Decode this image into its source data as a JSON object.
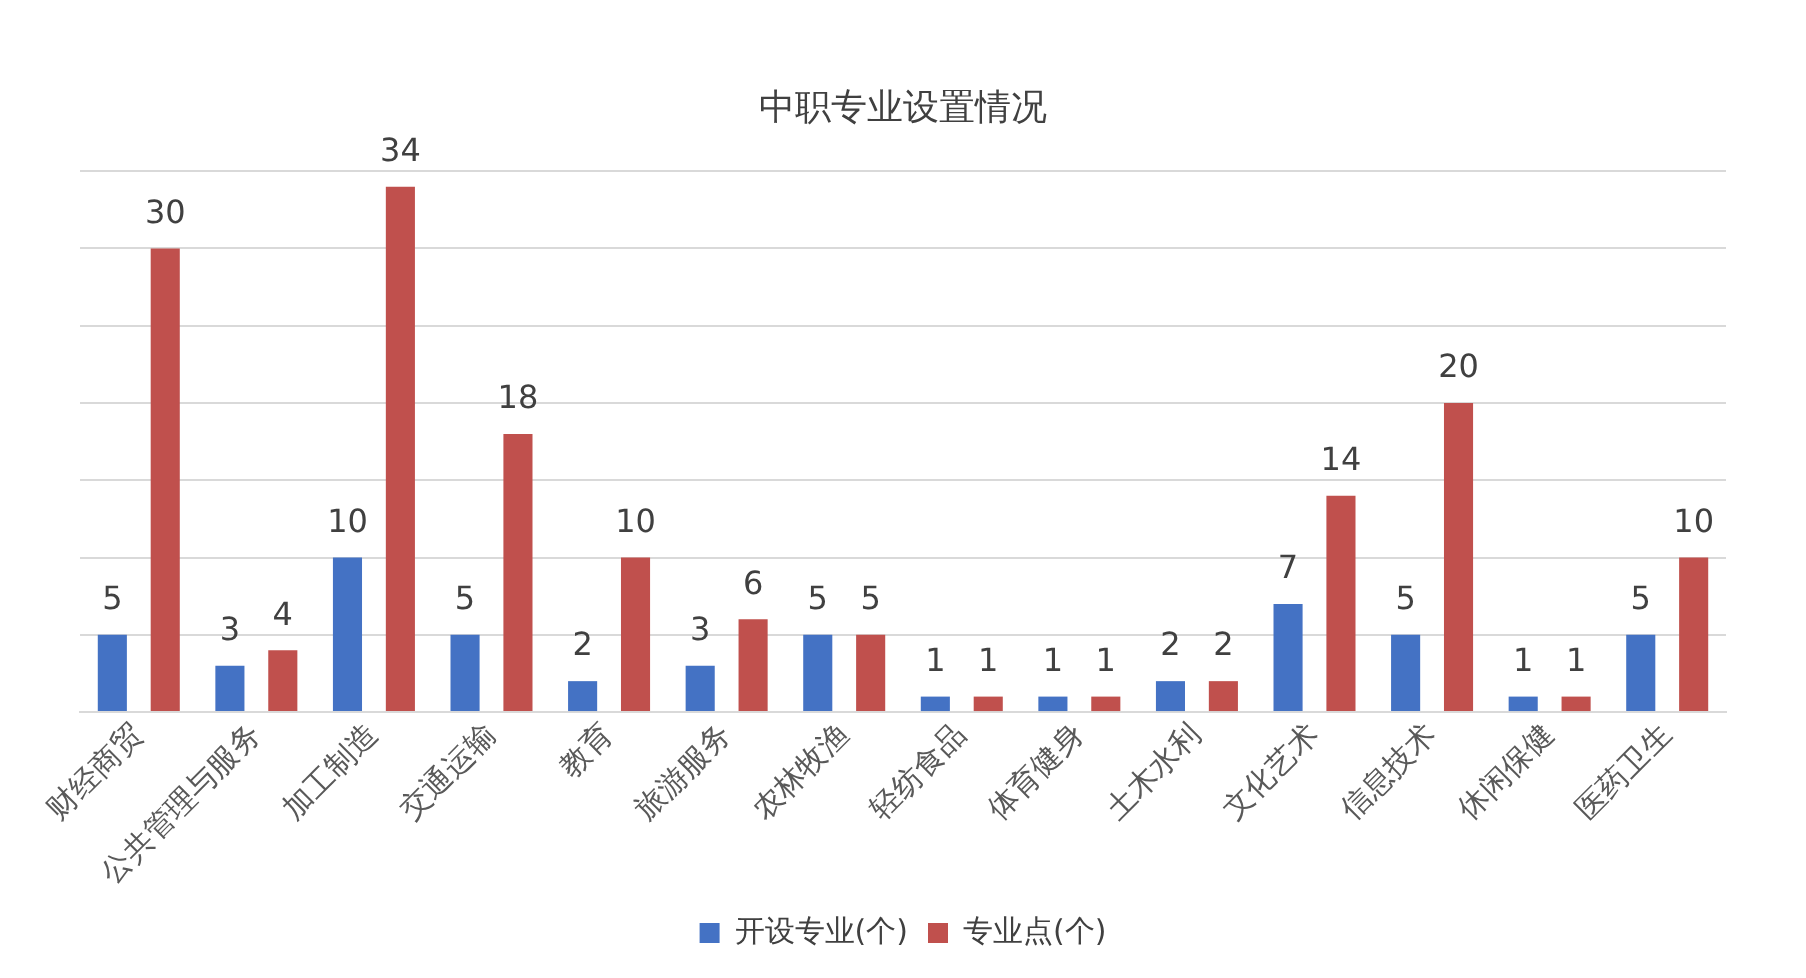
{
  "chart_data": {
    "type": "bar",
    "title": "中职专业设置情况",
    "categories": [
      "财经商贸",
      "公共管理与服务",
      "加工制造",
      "交通运输",
      "教育",
      "旅游服务",
      "农林牧渔",
      "轻纺食品",
      "体育健身",
      "土木水利",
      "文化艺术",
      "信息技术",
      "休闲保健",
      "医药卫生"
    ],
    "series": [
      {
        "name": "开设专业(个)",
        "color": "#4472c4",
        "values": [
          5,
          3,
          10,
          5,
          2,
          3,
          5,
          1,
          1,
          2,
          7,
          5,
          1,
          5
        ]
      },
      {
        "name": "专业点(个)",
        "color": "#c0504d",
        "values": [
          30,
          4,
          34,
          18,
          10,
          6,
          5,
          1,
          1,
          2,
          14,
          20,
          1,
          10
        ]
      }
    ],
    "grid": "y",
    "legend": "bottom",
    "tick_labels": "x",
    "data_labels": true
  }
}
